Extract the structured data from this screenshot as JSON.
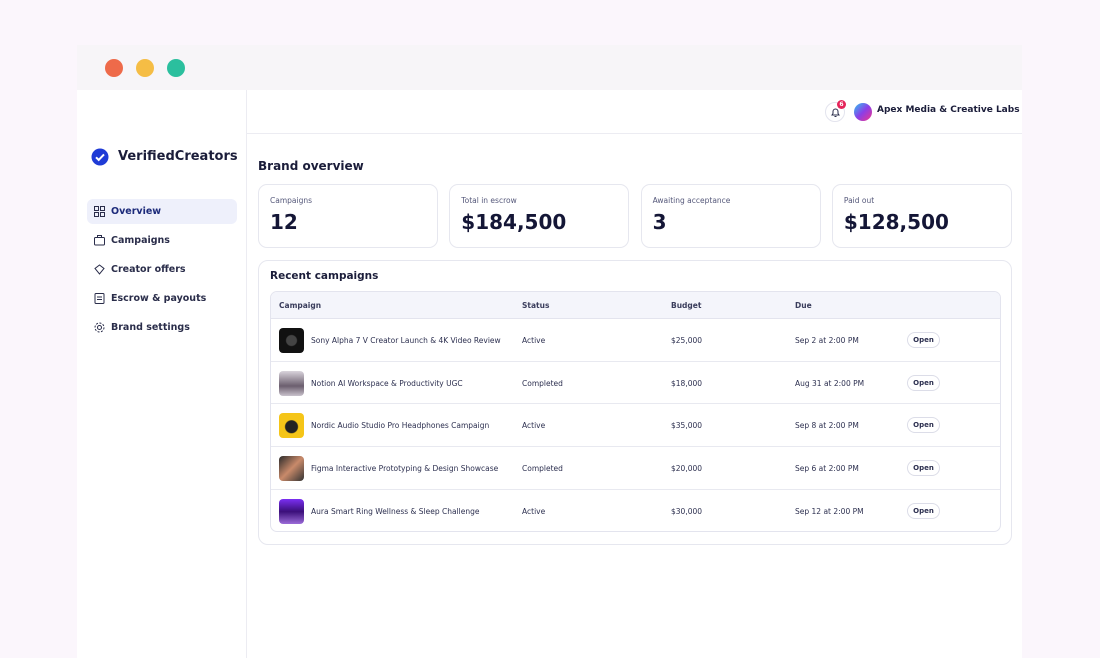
{
  "sidebar": {
    "brand": "VerifiedCreators",
    "nav": [
      "Overview",
      "Campaigns",
      "Creator offers",
      "Escrow & payouts",
      "Brand settings"
    ]
  },
  "topbar": {
    "notifications": "6",
    "account": "Apex Media & Creative Labs"
  },
  "overview": {
    "title": "Brand overview",
    "stats": [
      {
        "label": "Campaigns",
        "value": "12"
      },
      {
        "label": "Total in escrow",
        "value": "$184,500"
      },
      {
        "label": "Awaiting acceptance",
        "value": "3"
      },
      {
        "label": "Paid out",
        "value": "$128,500"
      }
    ]
  },
  "campaigns": {
    "title": "Recent campaigns",
    "columns": [
      "Campaign",
      "Status",
      "Budget",
      "Due"
    ],
    "rows": [
      {
        "name": "Sony Alpha 7 V Creator Launch & 4K Video Review",
        "status": "Active",
        "budget": "$25,000",
        "due": "Sep 2 at 2:00 PM",
        "action": "Open"
      },
      {
        "name": "Notion AI Workspace & Productivity UGC",
        "status": "Completed",
        "budget": "$18,000",
        "due": "Aug 31 at 2:00 PM",
        "action": "Open"
      },
      {
        "name": "Nordic Audio Studio Pro Headphones Campaign",
        "status": "Active",
        "budget": "$35,000",
        "due": "Sep 8 at 2:00 PM",
        "action": "Open"
      },
      {
        "name": "Figma Interactive Prototyping & Design Showcase",
        "status": "Completed",
        "budget": "$20,000",
        "due": "Sep 6 at 2:00 PM",
        "action": "Open"
      },
      {
        "name": "Aura Smart Ring Wellness & Sleep Challenge",
        "status": "Active",
        "budget": "$30,000",
        "due": "Sep 12 at 2:00 PM",
        "action": "Open"
      }
    ]
  }
}
